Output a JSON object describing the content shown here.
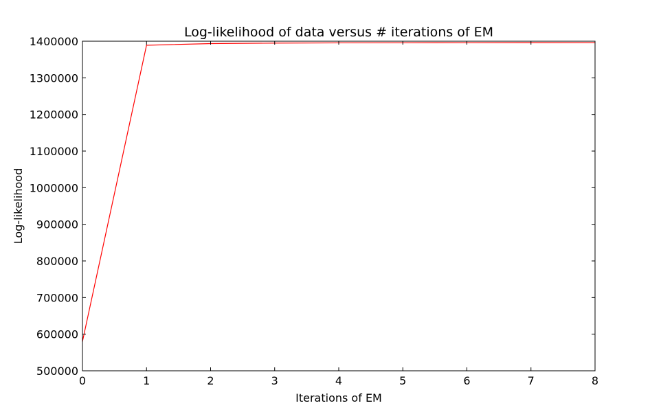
{
  "chart_data": {
    "type": "line",
    "title": "Log-likelihood of data versus # iterations of EM",
    "xlabel": "Iterations of EM",
    "ylabel": "Log-likelihood",
    "xlim": [
      0,
      8
    ],
    "ylim": [
      500000,
      1400000
    ],
    "xticks": [
      0,
      1,
      2,
      3,
      4,
      5,
      6,
      7,
      8
    ],
    "yticks": [
      500000,
      600000,
      700000,
      800000,
      900000,
      1000000,
      1100000,
      1200000,
      1300000,
      1400000
    ],
    "grid": false,
    "legend": "none",
    "series": [
      {
        "color": "#ff0000",
        "x": [
          0,
          1,
          2,
          3,
          4,
          5,
          6,
          7,
          8
        ],
        "y": [
          580000,
          1389000,
          1393500,
          1394800,
          1395400,
          1395700,
          1395900,
          1396000,
          1396100
        ]
      }
    ]
  }
}
